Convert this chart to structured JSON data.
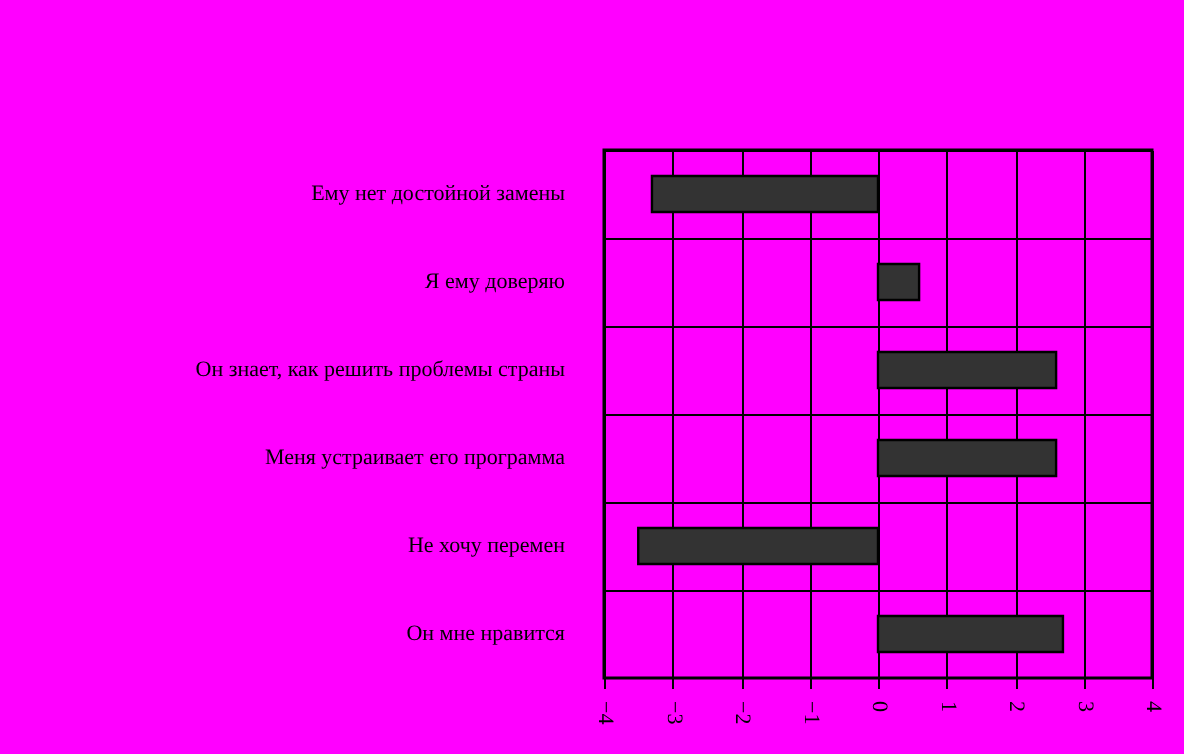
{
  "chart_data": {
    "type": "bar",
    "orientation": "horizontal",
    "categories": [
      "Ему нет достойной замены",
      "Я ему доверяю",
      "Он знает, как решить проблемы страны",
      "Меня устраивает его программа",
      "Не хочу перемен",
      "Он мне нравится"
    ],
    "values": [
      -3.3,
      0.6,
      2.6,
      2.6,
      -3.5,
      2.7
    ],
    "color": "#333333",
    "xlim": [
      -4,
      4
    ],
    "xticks": [
      -4,
      -3,
      -2,
      -1,
      0,
      1,
      2,
      3,
      4
    ],
    "grid": true
  }
}
